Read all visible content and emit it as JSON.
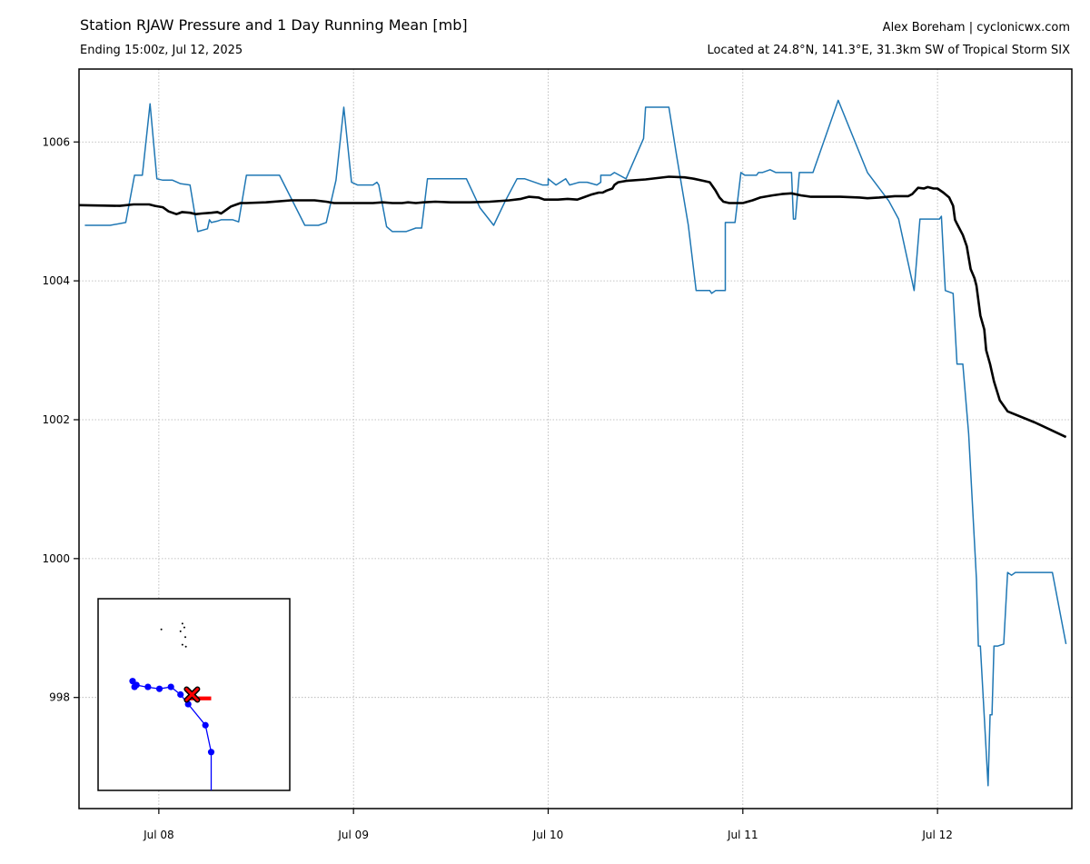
{
  "header": {
    "title": "Station RJAW Pressure and 1 Day Running Mean [mb]",
    "subtitle": "Ending 15:00z, Jul 12, 2025",
    "author": "Alex Boreham | cyclonicwx.com",
    "location": "Located at 24.8°N, 141.3°E, 31.3km SW of Tropical Storm SIX"
  },
  "colors": {
    "observed": "#1f77b4",
    "running_mean": "#000000",
    "track": "#0000ff",
    "marker": "#ff0000"
  },
  "chart_data": {
    "type": "line",
    "title": "Station RJAW Pressure and 1 Day Running Mean [mb]",
    "xlabel": "",
    "ylabel": "",
    "x_unit": "days since Jul 08 00:00z",
    "xlim": [
      -0.41,
      4.69
    ],
    "ylim": [
      996.4,
      1007.05
    ],
    "x_ticks": [
      0,
      1,
      2,
      3,
      4
    ],
    "x_tick_labels": [
      "Jul 08",
      "Jul 09",
      "Jul 10",
      "Jul 11",
      "Jul 12"
    ],
    "y_ticks": [
      998,
      1000,
      1002,
      1004,
      1006
    ],
    "y_tick_labels": [
      "998",
      "1000",
      "1002",
      "1004",
      "1006"
    ],
    "grid": true,
    "series": [
      {
        "key": "observed",
        "width": 1.5,
        "points": [
          [
            -0.38,
            1004.8
          ],
          [
            -0.25,
            1004.8
          ],
          [
            -0.17,
            1004.84
          ],
          [
            -0.125,
            1005.52
          ],
          [
            -0.085,
            1005.52
          ],
          [
            -0.045,
            1006.55
          ],
          [
            -0.01,
            1005.47
          ],
          [
            0.02,
            1005.45
          ],
          [
            0.07,
            1005.45
          ],
          [
            0.11,
            1005.4
          ],
          [
            0.16,
            1005.38
          ],
          [
            0.2,
            1004.71
          ],
          [
            0.25,
            1004.75
          ],
          [
            0.26,
            1004.88
          ],
          [
            0.27,
            1004.84
          ],
          [
            0.3,
            1004.86
          ],
          [
            0.32,
            1004.88
          ],
          [
            0.38,
            1004.88
          ],
          [
            0.41,
            1004.85
          ],
          [
            0.45,
            1005.52
          ],
          [
            0.62,
            1005.52
          ],
          [
            0.75,
            1004.8
          ],
          [
            0.82,
            1004.8
          ],
          [
            0.86,
            1004.84
          ],
          [
            0.91,
            1005.45
          ],
          [
            0.95,
            1006.5
          ],
          [
            0.99,
            1005.42
          ],
          [
            1.02,
            1005.38
          ],
          [
            1.1,
            1005.38
          ],
          [
            1.12,
            1005.42
          ],
          [
            1.13,
            1005.38
          ],
          [
            1.17,
            1004.78
          ],
          [
            1.2,
            1004.71
          ],
          [
            1.27,
            1004.71
          ],
          [
            1.32,
            1004.76
          ],
          [
            1.35,
            1004.76
          ],
          [
            1.38,
            1005.47
          ],
          [
            1.58,
            1005.47
          ],
          [
            1.65,
            1005.05
          ],
          [
            1.72,
            1004.8
          ],
          [
            1.78,
            1005.15
          ],
          [
            1.84,
            1005.47
          ],
          [
            1.88,
            1005.47
          ],
          [
            1.97,
            1005.38
          ],
          [
            2.0,
            1005.38
          ],
          [
            2.0,
            1005.47
          ],
          [
            2.04,
            1005.38
          ],
          [
            2.09,
            1005.47
          ],
          [
            2.11,
            1005.38
          ],
          [
            2.16,
            1005.42
          ],
          [
            2.2,
            1005.42
          ],
          [
            2.25,
            1005.38
          ],
          [
            2.27,
            1005.42
          ],
          [
            2.27,
            1005.52
          ],
          [
            2.32,
            1005.52
          ],
          [
            2.34,
            1005.56
          ],
          [
            2.4,
            1005.47
          ],
          [
            2.49,
            1006.05
          ],
          [
            2.5,
            1006.5
          ],
          [
            2.62,
            1006.5
          ],
          [
            2.66,
            1005.8
          ],
          [
            2.72,
            1004.8
          ],
          [
            2.76,
            1003.86
          ],
          [
            2.83,
            1003.86
          ],
          [
            2.84,
            1003.82
          ],
          [
            2.86,
            1003.86
          ],
          [
            2.91,
            1003.86
          ],
          [
            2.91,
            1004.84
          ],
          [
            2.96,
            1004.84
          ],
          [
            2.99,
            1005.56
          ],
          [
            3.01,
            1005.52
          ],
          [
            3.07,
            1005.52
          ],
          [
            3.08,
            1005.56
          ],
          [
            3.1,
            1005.56
          ],
          [
            3.14,
            1005.6
          ],
          [
            3.17,
            1005.56
          ],
          [
            3.25,
            1005.56
          ],
          [
            3.26,
            1004.89
          ],
          [
            3.27,
            1004.89
          ],
          [
            3.29,
            1005.56
          ],
          [
            3.36,
            1005.56
          ],
          [
            3.49,
            1006.6
          ],
          [
            3.64,
            1005.56
          ],
          [
            3.75,
            1005.15
          ],
          [
            3.8,
            1004.89
          ],
          [
            3.88,
            1003.86
          ],
          [
            3.91,
            1004.89
          ],
          [
            4.01,
            1004.89
          ],
          [
            4.02,
            1004.93
          ],
          [
            4.04,
            1003.86
          ],
          [
            4.08,
            1003.82
          ],
          [
            4.1,
            1002.8
          ],
          [
            4.13,
            1002.8
          ],
          [
            4.16,
            1001.8
          ],
          [
            4.2,
            999.7
          ],
          [
            4.21,
            998.74
          ],
          [
            4.22,
            998.74
          ],
          [
            4.26,
            996.73
          ],
          [
            4.27,
            997.75
          ],
          [
            4.28,
            997.75
          ],
          [
            4.29,
            998.74
          ],
          [
            4.31,
            998.74
          ],
          [
            4.34,
            998.77
          ],
          [
            4.36,
            999.8
          ],
          [
            4.38,
            999.76
          ],
          [
            4.4,
            999.8
          ],
          [
            4.59,
            999.8
          ],
          [
            4.66,
            998.77
          ]
        ]
      },
      {
        "key": "running_mean",
        "width": 2.6,
        "points": [
          [
            -0.41,
            1005.09
          ],
          [
            -0.2,
            1005.08
          ],
          [
            -0.13,
            1005.1
          ],
          [
            -0.05,
            1005.1
          ],
          [
            -0.02,
            1005.08
          ],
          [
            0.02,
            1005.06
          ],
          [
            0.05,
            1005.0
          ],
          [
            0.09,
            1004.96
          ],
          [
            0.1,
            1004.97
          ],
          [
            0.12,
            1004.99
          ],
          [
            0.16,
            1004.98
          ],
          [
            0.19,
            1004.96
          ],
          [
            0.22,
            1004.97
          ],
          [
            0.27,
            1004.98
          ],
          [
            0.3,
            1004.99
          ],
          [
            0.32,
            1004.97
          ],
          [
            0.33,
            1004.99
          ],
          [
            0.37,
            1005.07
          ],
          [
            0.4,
            1005.1
          ],
          [
            0.42,
            1005.12
          ],
          [
            0.45,
            1005.12
          ],
          [
            0.55,
            1005.13
          ],
          [
            0.68,
            1005.16
          ],
          [
            0.8,
            1005.16
          ],
          [
            0.86,
            1005.14
          ],
          [
            0.9,
            1005.12
          ],
          [
            1.0,
            1005.12
          ],
          [
            1.1,
            1005.12
          ],
          [
            1.15,
            1005.13
          ],
          [
            1.2,
            1005.12
          ],
          [
            1.25,
            1005.12
          ],
          [
            1.28,
            1005.13
          ],
          [
            1.32,
            1005.12
          ],
          [
            1.36,
            1005.13
          ],
          [
            1.42,
            1005.14
          ],
          [
            1.5,
            1005.13
          ],
          [
            1.6,
            1005.13
          ],
          [
            1.7,
            1005.14
          ],
          [
            1.8,
            1005.16
          ],
          [
            1.86,
            1005.18
          ],
          [
            1.9,
            1005.21
          ],
          [
            1.95,
            1005.2
          ],
          [
            1.98,
            1005.17
          ],
          [
            2.05,
            1005.17
          ],
          [
            2.1,
            1005.18
          ],
          [
            2.15,
            1005.17
          ],
          [
            2.18,
            1005.2
          ],
          [
            2.22,
            1005.24
          ],
          [
            2.26,
            1005.27
          ],
          [
            2.28,
            1005.27
          ],
          [
            2.3,
            1005.3
          ],
          [
            2.33,
            1005.33
          ],
          [
            2.34,
            1005.38
          ],
          [
            2.36,
            1005.42
          ],
          [
            2.4,
            1005.44
          ],
          [
            2.5,
            1005.46
          ],
          [
            2.56,
            1005.48
          ],
          [
            2.62,
            1005.5
          ],
          [
            2.7,
            1005.49
          ],
          [
            2.75,
            1005.47
          ],
          [
            2.8,
            1005.44
          ],
          [
            2.83,
            1005.42
          ],
          [
            2.86,
            1005.3
          ],
          [
            2.88,
            1005.2
          ],
          [
            2.9,
            1005.14
          ],
          [
            2.93,
            1005.12
          ],
          [
            3.0,
            1005.12
          ],
          [
            3.05,
            1005.16
          ],
          [
            3.09,
            1005.2
          ],
          [
            3.15,
            1005.23
          ],
          [
            3.2,
            1005.25
          ],
          [
            3.25,
            1005.26
          ],
          [
            3.3,
            1005.23
          ],
          [
            3.35,
            1005.21
          ],
          [
            3.5,
            1005.21
          ],
          [
            3.6,
            1005.2
          ],
          [
            3.64,
            1005.19
          ],
          [
            3.7,
            1005.2
          ],
          [
            3.78,
            1005.22
          ],
          [
            3.85,
            1005.22
          ],
          [
            3.87,
            1005.25
          ],
          [
            3.9,
            1005.34
          ],
          [
            3.93,
            1005.33
          ],
          [
            3.95,
            1005.35
          ],
          [
            3.98,
            1005.33
          ],
          [
            4.0,
            1005.33
          ],
          [
            4.03,
            1005.27
          ],
          [
            4.06,
            1005.2
          ],
          [
            4.08,
            1005.08
          ],
          [
            4.09,
            1004.88
          ],
          [
            4.1,
            1004.82
          ],
          [
            4.13,
            1004.66
          ],
          [
            4.15,
            1004.5
          ],
          [
            4.17,
            1004.17
          ],
          [
            4.19,
            1004.04
          ],
          [
            4.2,
            1003.93
          ],
          [
            4.22,
            1003.5
          ],
          [
            4.24,
            1003.3
          ],
          [
            4.25,
            1003.0
          ],
          [
            4.27,
            1002.8
          ],
          [
            4.29,
            1002.55
          ],
          [
            4.32,
            1002.28
          ],
          [
            4.36,
            1002.12
          ],
          [
            4.5,
            1001.96
          ],
          [
            4.66,
            1001.75
          ]
        ]
      }
    ]
  },
  "inset_map": {
    "islands": [
      [
        0.44,
        0.13
      ],
      [
        0.45,
        0.15
      ],
      [
        0.455,
        0.2
      ],
      [
        0.458,
        0.25
      ],
      [
        0.44,
        0.24
      ],
      [
        0.43,
        0.17
      ],
      [
        0.33,
        0.16
      ]
    ],
    "track": [
      [
        0.59,
        1.0
      ],
      [
        0.59,
        0.8
      ],
      [
        0.56,
        0.66
      ],
      [
        0.47,
        0.55
      ],
      [
        0.43,
        0.5
      ],
      [
        0.38,
        0.46
      ],
      [
        0.32,
        0.47
      ],
      [
        0.25,
        0.46
      ],
      [
        0.2,
        0.45
      ],
      [
        0.18,
        0.43
      ],
      [
        0.2,
        0.46
      ]
    ],
    "track_points": [
      [
        0.59,
        0.8
      ],
      [
        0.56,
        0.66
      ],
      [
        0.47,
        0.55
      ],
      [
        0.43,
        0.5
      ],
      [
        0.38,
        0.46
      ],
      [
        0.32,
        0.47
      ],
      [
        0.26,
        0.46
      ],
      [
        0.2,
        0.45
      ],
      [
        0.18,
        0.43
      ],
      [
        0.19,
        0.46
      ]
    ],
    "bars": [
      [
        0.48,
        0.52,
        0.56,
        0.41
      ],
      [
        0.47,
        0.51,
        0.59,
        0.53
      ]
    ],
    "station": [
      0.49,
      0.5
    ]
  }
}
